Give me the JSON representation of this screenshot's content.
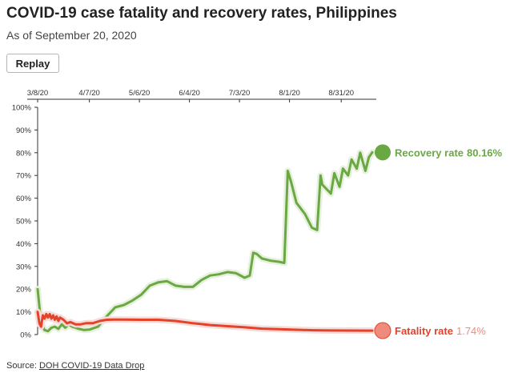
{
  "header": {
    "title": "COVID-19 case fatality and recovery rates, Philippines",
    "subtitle": "As of September 20, 2020",
    "replay_label": "Replay"
  },
  "footer": {
    "source_prefix": "Source:",
    "source_link": "DOH COVID-19 Data Drop"
  },
  "colors": {
    "recovery": "#6aa843",
    "recovery_halo": "#e6f0dc",
    "fatality": "#e2432a",
    "fatality_halo": "#f6dcd8",
    "fatality_label": "#e2432a",
    "fatality_value": "#ef8b7c",
    "axis": "#333333",
    "grid": "#e5e5e5"
  },
  "chart_data": {
    "type": "line",
    "title": "COVID-19 case fatality and recovery rates, Philippines",
    "subtitle": "As of September 20, 2020",
    "x_start": "3/8/20",
    "x_end": "9/20/20",
    "x_ticks": [
      "3/8/20",
      "4/7/20",
      "5/6/20",
      "6/4/20",
      "7/3/20",
      "8/1/20",
      "8/31/20"
    ],
    "x_tick_positions": [
      0,
      30,
      59,
      88,
      117,
      146,
      176
    ],
    "ylim": [
      0,
      100
    ],
    "y_ticks": [
      0,
      10,
      20,
      30,
      40,
      50,
      60,
      70,
      80,
      90,
      100
    ],
    "y_tick_labels": [
      "0%",
      "10%",
      "20%",
      "30%",
      "40%",
      "50%",
      "60%",
      "70%",
      "80%",
      "90%",
      "100%"
    ],
    "grid": false,
    "series": [
      {
        "name": "Recovery rate",
        "label_value": "80.16%",
        "x": [
          0,
          2,
          4,
          6,
          8,
          10,
          12,
          14,
          16,
          18,
          20,
          22,
          24,
          27,
          30,
          35,
          40,
          45,
          50,
          55,
          60,
          65,
          70,
          75,
          80,
          85,
          90,
          95,
          100,
          105,
          110,
          115,
          120,
          123,
          125,
          127,
          130,
          135,
          140,
          143,
          145,
          147,
          150,
          155,
          159,
          162,
          164,
          165,
          170,
          172,
          175,
          177,
          180,
          182,
          185,
          187,
          190,
          192,
          194
        ],
        "values": [
          20,
          5,
          2,
          1.5,
          3,
          3.5,
          2.5,
          4.5,
          3,
          4.5,
          3.5,
          3,
          2.5,
          2,
          2.2,
          3.5,
          8,
          12,
          13,
          15,
          17.5,
          21.5,
          23,
          23.5,
          21.5,
          21,
          21,
          24,
          26,
          26.5,
          27.5,
          27,
          25,
          26,
          36,
          35.5,
          33.5,
          32.5,
          32,
          31.5,
          72,
          67,
          58,
          53,
          47,
          46,
          70,
          66,
          62,
          71,
          65,
          73,
          70,
          77,
          73,
          80,
          72,
          78,
          80.16
        ]
      },
      {
        "name": "Fatality rate",
        "label_value": "1.74%",
        "x": [
          0,
          1,
          2,
          3,
          4,
          5,
          6,
          7,
          8,
          9,
          10,
          11,
          12,
          13,
          15,
          17,
          19,
          22,
          25,
          28,
          32,
          36,
          40,
          44,
          50,
          60,
          70,
          80,
          90,
          100,
          110,
          120,
          130,
          140,
          150,
          160,
          170,
          180,
          194
        ],
        "values": [
          10,
          5,
          3.5,
          8.5,
          7,
          9,
          7.5,
          9,
          7,
          8.5,
          6.5,
          8,
          6,
          7.5,
          6.5,
          5,
          5.5,
          4.5,
          4.5,
          5,
          5,
          6,
          6.5,
          6.6,
          6.6,
          6.5,
          6.5,
          6,
          5,
          4.2,
          3.7,
          3.2,
          2.6,
          2.4,
          2.1,
          1.9,
          1.8,
          1.75,
          1.74
        ]
      }
    ]
  }
}
